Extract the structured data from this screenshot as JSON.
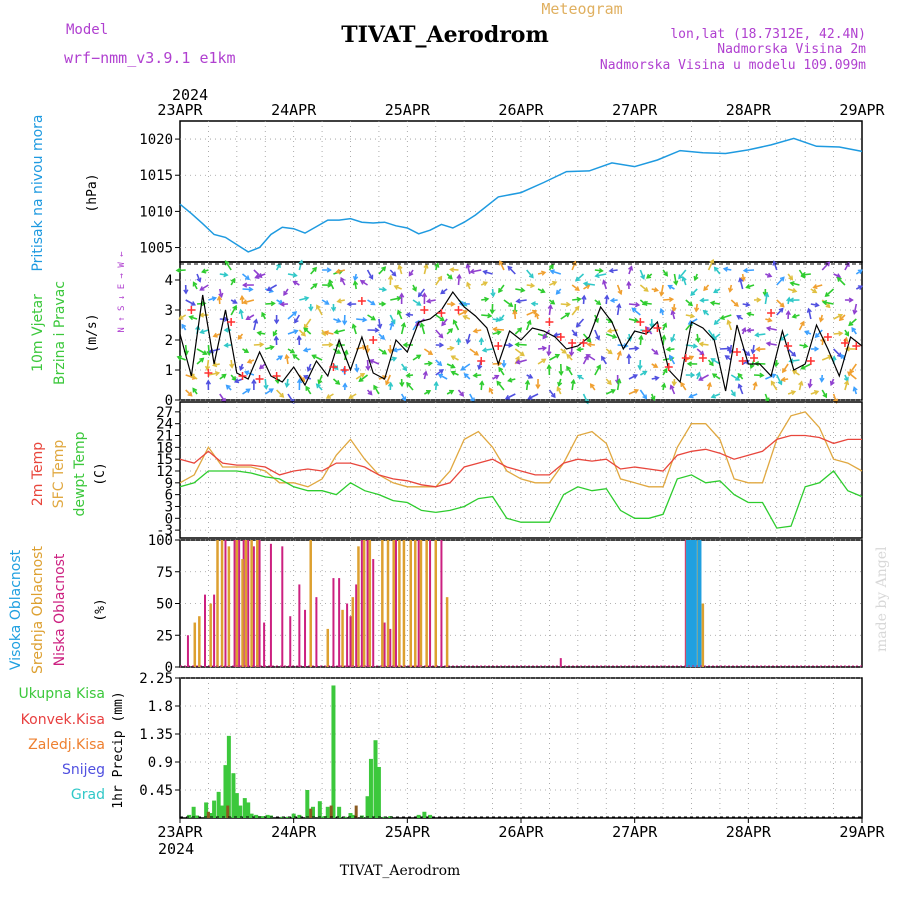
{
  "header": {
    "model_label": "Model",
    "model_name": "wrf−nmm_v3.9.1  e1km",
    "station_title": "TIVAT_Aerodrom",
    "meteogram_label": "Meteogram",
    "lonlat": "lon,lat (18.7312E, 42.4N)",
    "elevation": "Nadmorska Visina 2m",
    "model_elevation": "Nadmorska Visina u modelu 109.099m",
    "year_top": "2024",
    "year_bottom": "2024",
    "footer_station": "TIVAT_Aerodrom",
    "credit": "made by Angel"
  },
  "colors": {
    "pressure": "#1e9ae0",
    "t2m": "#e8463c",
    "sfc": "#e0a840",
    "dewpt": "#2ecc2e",
    "high_cloud": "#20a0e0",
    "mid_cloud": "#dda030",
    "low_cloud": "#cc2080",
    "total_rain": "#3cc83c",
    "conv_rain": "#e84040",
    "frz_rain": "#ee8030",
    "snow": "#5050e0",
    "hail": "#30c8c8",
    "model_text": "#b040d0"
  },
  "chart_data": [
    {
      "type": "line",
      "panel": "pressure",
      "ylabel_1": "Pritisak na nivou mora",
      "ylabel_2": "(hPa)",
      "x_ticks": [
        "23APR",
        "24APR",
        "25APR",
        "26APR",
        "27APR",
        "28APR",
        "29APR"
      ],
      "x_unit": "days since 23APR 00 UTC",
      "yticks": [
        1005,
        1010,
        1015,
        1020
      ],
      "ylim": [
        1003,
        1022.5
      ],
      "grid": true,
      "series": [
        {
          "name": "Pritisak na nivou mora",
          "x": [
            0,
            0.1,
            0.2,
            0.3,
            0.4,
            0.5,
            0.6,
            0.7,
            0.8,
            0.9,
            1.0,
            1.1,
            1.2,
            1.3,
            1.4,
            1.5,
            1.6,
            1.7,
            1.8,
            1.9,
            2.0,
            2.1,
            2.2,
            2.3,
            2.4,
            2.5,
            2.6,
            2.8,
            3.0,
            3.2,
            3.4,
            3.6,
            3.8,
            4.0,
            4.2,
            4.4,
            4.6,
            4.8,
            5.0,
            5.2,
            5.4,
            5.6,
            5.8,
            6.0
          ],
          "values": [
            1011,
            1009.7,
            1008.3,
            1006.8,
            1006.4,
            1005.4,
            1004.4,
            1005.0,
            1006.8,
            1007.8,
            1007.6,
            1007.0,
            1007.9,
            1008.8,
            1008.8,
            1009.0,
            1008.5,
            1008.4,
            1008.5,
            1008.0,
            1007.7,
            1006.9,
            1007.4,
            1008.2,
            1007.7,
            1008.5,
            1009.5,
            1012.0,
            1012.6,
            1014.0,
            1015.5,
            1015.6,
            1016.7,
            1016.2,
            1017.1,
            1018.4,
            1018.1,
            1018.0,
            1018.5,
            1019.2,
            1020.1,
            1019.0,
            1018.9,
            1018.3
          ]
        }
      ]
    },
    {
      "type": "line",
      "panel": "wind",
      "ylabel_1": "10m Vjetar",
      "ylabel_2": "Brzina i Pravac",
      "ylabel_3": "(m/s)",
      "compass": "N ↑ S ↓ E → W ←",
      "yticks": [
        0,
        1,
        2,
        3,
        4
      ],
      "ylim": [
        0,
        4.6
      ],
      "grid": true,
      "series": [
        {
          "name": "wind speed",
          "x": [
            0,
            0.1,
            0.2,
            0.3,
            0.4,
            0.5,
            0.6,
            0.7,
            0.8,
            0.9,
            1.0,
            1.1,
            1.2,
            1.3,
            1.4,
            1.5,
            1.6,
            1.7,
            1.8,
            1.9,
            2.0,
            2.1,
            2.2,
            2.3,
            2.4,
            2.5,
            2.6,
            2.7,
            2.8,
            2.9,
            3.0,
            3.1,
            3.2,
            3.3,
            3.4,
            3.5,
            3.6,
            3.7,
            3.8,
            3.9,
            4.0,
            4.1,
            4.2,
            4.3,
            4.4,
            4.5,
            4.6,
            4.7,
            4.8,
            4.9,
            5.0,
            5.1,
            5.2,
            5.3,
            5.4,
            5.5,
            5.6,
            5.7,
            5.8,
            5.9,
            6.0
          ],
          "values": [
            2.2,
            0.8,
            3.5,
            1.2,
            3.0,
            0.9,
            0.7,
            1.6,
            0.8,
            0.6,
            1.1,
            0.5,
            1.3,
            0.8,
            2.0,
            1.0,
            2.1,
            0.9,
            0.7,
            2.0,
            1.6,
            2.6,
            2.7,
            3.0,
            3.6,
            3.1,
            2.8,
            2.4,
            1.2,
            2.3,
            2.0,
            2.4,
            2.3,
            2.1,
            1.7,
            1.8,
            2.1,
            3.1,
            2.6,
            1.7,
            2.3,
            2.2,
            2.6,
            1.0,
            0.6,
            2.6,
            2.4,
            2.0,
            0.3,
            2.5,
            1.2,
            1.2,
            0.8,
            2.3,
            1.0,
            1.2,
            2.5,
            1.7,
            0.8,
            2.1,
            1.8
          ]
        },
        {
          "name": "gusts",
          "x": [
            0.1,
            0.25,
            0.45,
            0.55,
            0.7,
            0.85,
            1.35,
            1.45,
            1.6,
            1.7,
            2.15,
            2.3,
            2.45,
            2.65,
            2.8,
            3.25,
            3.35,
            3.45,
            3.55,
            4.05,
            4.1,
            4.2,
            4.3,
            4.45,
            4.6,
            4.9,
            4.95,
            5.05,
            5.2,
            5.35,
            5.55,
            5.7,
            5.85,
            5.95
          ],
          "values": [
            3.0,
            0.9,
            2.6,
            0.8,
            0.7,
            0.8,
            1.1,
            1.0,
            3.3,
            2.0,
            3.0,
            2.9,
            3.0,
            1.3,
            1.8,
            2.6,
            2.1,
            1.9,
            1.9,
            2.6,
            2.3,
            2.4,
            1.1,
            1.4,
            1.4,
            1.6,
            1.3,
            1.4,
            2.9,
            1.8,
            1.3,
            2.1,
            1.9,
            1.8
          ]
        }
      ]
    },
    {
      "type": "line",
      "panel": "temperature",
      "ylabel_1": "2m Temp",
      "ylabel_2": "SFC Temp",
      "ylabel_3": "dewpt Temp",
      "ylabel_4": "(C)",
      "yticks": [
        -3,
        0,
        3,
        6,
        9,
        12,
        15,
        18,
        21,
        24,
        27
      ],
      "ylim": [
        -5,
        29.5
      ],
      "grid": true,
      "series": [
        {
          "name": "2m Temp",
          "x": [
            0,
            0.125,
            0.25,
            0.375,
            0.5,
            0.625,
            0.75,
            0.875,
            1.0,
            1.125,
            1.25,
            1.375,
            1.5,
            1.625,
            1.75,
            1.875,
            2.0,
            2.125,
            2.25,
            2.375,
            2.5,
            2.625,
            2.75,
            2.875,
            3.0,
            3.125,
            3.25,
            3.375,
            3.5,
            3.625,
            3.75,
            3.875,
            4.0,
            4.125,
            4.25,
            4.375,
            4.5,
            4.625,
            4.75,
            4.875,
            5.0,
            5.125,
            5.25,
            5.375,
            5.5,
            5.625,
            5.75,
            5.875,
            6.0
          ],
          "values": [
            15,
            14,
            17,
            14,
            13.5,
            13.5,
            13,
            11,
            12,
            12.5,
            12,
            14,
            14,
            13,
            11,
            10,
            9.5,
            8.5,
            8,
            9,
            13,
            14,
            15,
            13,
            12,
            11,
            11,
            14,
            15,
            14.5,
            15,
            12.5,
            13,
            12.5,
            12,
            16,
            17,
            17.5,
            16.5,
            15,
            16,
            17,
            20,
            21,
            21,
            20.5,
            19,
            20,
            20
          ]
        },
        {
          "name": "SFC Temp",
          "x": [
            0,
            0.125,
            0.25,
            0.375,
            0.5,
            0.625,
            0.75,
            0.875,
            1.0,
            1.125,
            1.25,
            1.375,
            1.5,
            1.625,
            1.75,
            1.875,
            2.0,
            2.125,
            2.25,
            2.375,
            2.5,
            2.625,
            2.75,
            2.875,
            3.0,
            3.125,
            3.25,
            3.375,
            3.5,
            3.625,
            3.75,
            3.875,
            4.0,
            4.125,
            4.25,
            4.375,
            4.5,
            4.625,
            4.75,
            4.875,
            5.0,
            5.125,
            5.25,
            5.375,
            5.5,
            5.625,
            5.75,
            5.875,
            6.0
          ],
          "values": [
            9,
            11,
            18,
            13,
            13,
            13,
            12,
            9,
            9,
            8,
            10,
            16,
            20,
            15,
            11,
            9,
            8,
            8,
            8,
            12,
            20,
            22,
            18,
            12,
            10,
            9,
            9,
            14,
            21,
            22,
            19,
            10,
            9,
            8,
            8,
            18,
            24,
            24,
            20,
            10,
            9,
            9,
            20,
            26,
            27,
            23,
            15,
            14,
            12
          ]
        },
        {
          "name": "dewpt Temp",
          "x": [
            0,
            0.125,
            0.25,
            0.375,
            0.5,
            0.625,
            0.75,
            0.875,
            1.0,
            1.125,
            1.25,
            1.375,
            1.5,
            1.625,
            1.75,
            1.875,
            2.0,
            2.125,
            2.25,
            2.375,
            2.5,
            2.625,
            2.75,
            2.875,
            3.0,
            3.125,
            3.25,
            3.375,
            3.5,
            3.625,
            3.75,
            3.875,
            4.0,
            4.125,
            4.25,
            4.375,
            4.5,
            4.625,
            4.75,
            4.875,
            5.0,
            5.125,
            5.25,
            5.375,
            5.5,
            5.625,
            5.75,
            5.875,
            6.0
          ],
          "values": [
            8,
            9,
            12,
            12,
            12,
            11.5,
            10.5,
            10,
            8,
            7,
            7,
            6,
            9,
            7,
            6,
            4.5,
            4,
            2,
            1.5,
            2,
            3,
            5,
            5.5,
            0,
            -1,
            -1,
            -1,
            6,
            8,
            7,
            7.5,
            2,
            0,
            0,
            1,
            10,
            11,
            9,
            9.5,
            6,
            4,
            4,
            -2.5,
            -2,
            8,
            9,
            12,
            7,
            5.5
          ]
        }
      ]
    },
    {
      "type": "bar",
      "panel": "clouds",
      "ylabel_1": "Visoka Oblacnost",
      "ylabel_2": "Srednja Oblacnost",
      "ylabel_3": "Niska Oblacnost",
      "ylabel_4": "(%)",
      "yticks": [
        0,
        25,
        50,
        75,
        100
      ],
      "ylim": [
        0,
        100
      ],
      "grid": true,
      "series": [
        {
          "name": "Niska Oblacnost",
          "x": [
            0.07,
            0.22,
            0.3,
            0.4,
            0.48,
            0.52,
            0.56,
            0.6,
            0.65,
            0.7,
            0.74,
            0.8,
            0.9,
            0.97,
            1.05,
            1.1,
            1.2,
            1.25,
            1.35,
            1.4,
            1.47,
            1.5,
            1.55,
            1.6,
            1.65,
            1.7,
            1.8,
            1.85,
            1.9,
            2.1,
            2.2,
            2.3,
            3.35,
            4.45
          ],
          "values": [
            25,
            57,
            57,
            100,
            100,
            100,
            100,
            100,
            95,
            100,
            35,
            97,
            95,
            40,
            65,
            45,
            55,
            0,
            70,
            70,
            50,
            40,
            65,
            100,
            100,
            85,
            35,
            30,
            100,
            100,
            100,
            100,
            7,
            100
          ]
        },
        {
          "name": "Srednja Oblacnost",
          "x": [
            0.13,
            0.17,
            0.27,
            0.33,
            0.37,
            0.43,
            0.5,
            0.55,
            0.58,
            0.63,
            0.68,
            1.15,
            1.3,
            1.43,
            1.52,
            1.57,
            1.62,
            1.67,
            1.78,
            1.83,
            1.88,
            1.93,
            1.97,
            2.03,
            2.07,
            2.12,
            2.17,
            2.25,
            2.35,
            4.46,
            4.5,
            4.56,
            4.6
          ],
          "values": [
            35,
            40,
            50,
            100,
            100,
            95,
            100,
            85,
            100,
            100,
            100,
            100,
            30,
            45,
            55,
            95,
            100,
            100,
            100,
            100,
            100,
            100,
            100,
            100,
            100,
            100,
            100,
            100,
            55,
            100,
            100,
            100,
            50
          ]
        },
        {
          "name": "Visoka Oblacnost",
          "x": [
            4.47,
            4.5,
            4.53,
            4.57
          ],
          "values": [
            100,
            100,
            100,
            100
          ]
        }
      ]
    },
    {
      "type": "bar",
      "panel": "precip",
      "ylabel_1": "1hr Precip (mm)",
      "legend": [
        "Ukupna Kisa",
        "Konvek.Kisa",
        "Zaledj.Kisa",
        "Snijeg",
        "Grad"
      ],
      "yticks": [
        0.45,
        0.9,
        1.35,
        1.8,
        2.25
      ],
      "ylim": [
        0,
        2.25
      ],
      "grid": true,
      "series": [
        {
          "name": "Ukupna Kisa",
          "x": [
            0.08,
            0.12,
            0.15,
            0.23,
            0.27,
            0.3,
            0.34,
            0.37,
            0.4,
            0.43,
            0.47,
            0.5,
            0.53,
            0.57,
            0.6,
            0.63,
            0.67,
            0.7,
            0.73,
            0.77,
            0.8,
            0.9,
            0.95,
            1.0,
            1.05,
            1.12,
            1.17,
            1.23,
            1.27,
            1.3,
            1.35,
            1.4,
            1.45,
            1.5,
            1.53,
            1.6,
            1.65,
            1.68,
            1.72,
            1.75,
            1.8,
            1.85,
            2.1,
            2.15,
            2.2
          ],
          "values": [
            0.05,
            0.18,
            0.04,
            0.25,
            0.08,
            0.28,
            0.42,
            0.2,
            0.85,
            1.32,
            0.72,
            0.4,
            0.2,
            0.32,
            0.25,
            0.07,
            0.05,
            0.03,
            0.03,
            0.05,
            0.04,
            0.02,
            0.02,
            0.07,
            0.05,
            0.45,
            0.18,
            0.27,
            0.03,
            0.18,
            2.13,
            0.18,
            0.02,
            0.08,
            0.05,
            0.04,
            0.35,
            0.95,
            1.25,
            0.82,
            0.02,
            0.03,
            0.05,
            0.1,
            0.05
          ]
        },
        {
          "name": "Konvek.Kisa",
          "x": [
            0.25,
            0.42,
            1.15,
            1.33,
            1.55
          ],
          "values": [
            0.1,
            0.2,
            0.15,
            0.2,
            0.2
          ]
        }
      ]
    }
  ]
}
